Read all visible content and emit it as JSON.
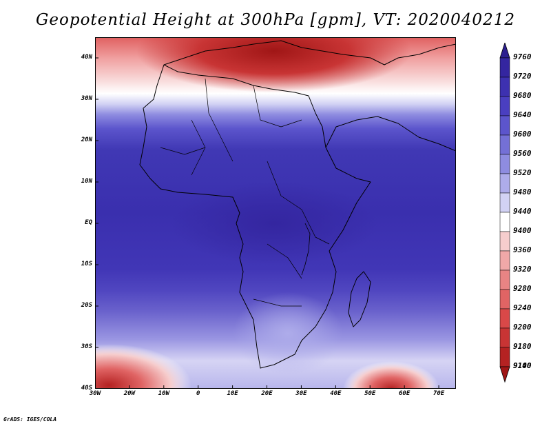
{
  "title": "Geopotential Height at 300hPa [gpm], VT: 2020040212",
  "credit": "GrADS: IGES/COLA",
  "map": {
    "type": "filled-contour",
    "variable": "Geopotential Height",
    "level": "300hPa",
    "units": "gpm",
    "valid_time": "2020040212",
    "lon_range": [
      -30,
      75
    ],
    "lat_range": [
      -40,
      45
    ],
    "lat_labels": [
      "40N",
      "30N",
      "20N",
      "10N",
      "EQ",
      "10S",
      "20S",
      "30S",
      "40S"
    ],
    "lat_values": [
      40,
      30,
      20,
      10,
      0,
      -10,
      -20,
      -30,
      -40
    ],
    "lon_labels": [
      "30W",
      "20W",
      "10W",
      "0",
      "10E",
      "20E",
      "30E",
      "40E",
      "50E",
      "60E",
      "70E"
    ],
    "lon_values": [
      -30,
      -20,
      -10,
      0,
      10,
      20,
      30,
      40,
      50,
      60,
      70
    ]
  },
  "colorbar": {
    "levels": [
      9760,
      9720,
      9680,
      9640,
      9600,
      9560,
      9520,
      9480,
      9440,
      9400,
      9360,
      9320,
      9280,
      9240,
      9200,
      9180,
      9140,
      9100
    ],
    "colors": [
      "#2c1f8f",
      "#3426a0",
      "#3d31b0",
      "#4a3fc0",
      "#5c55cc",
      "#7470d6",
      "#8e8ce0",
      "#aeacea",
      "#d2d2f4",
      "#ffffff",
      "#f6cdcd",
      "#f0a8a8",
      "#e88484",
      "#e06464",
      "#d94848",
      "#c83434",
      "#b42222",
      "#a01616"
    ]
  }
}
